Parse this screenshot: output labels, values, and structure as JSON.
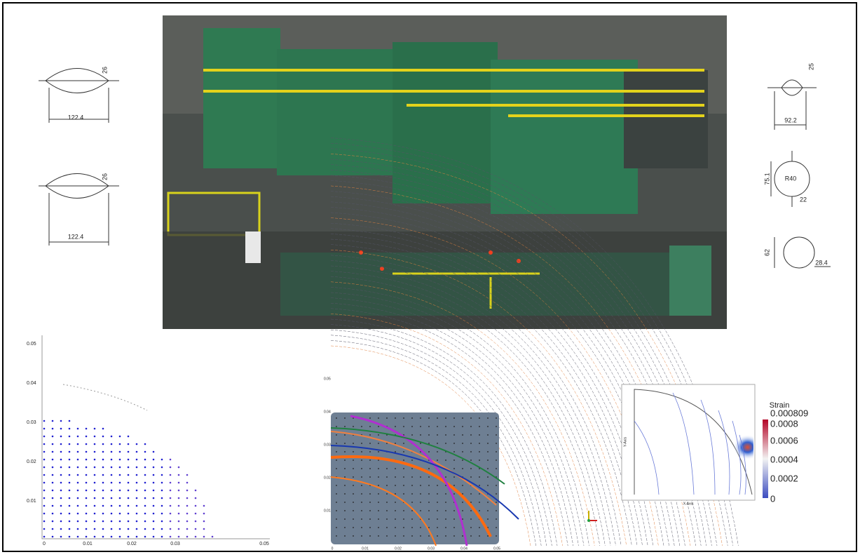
{
  "drawings": [
    {
      "labels": [
        "26",
        "122.4"
      ]
    },
    {
      "labels": [
        "26",
        "122.4"
      ]
    },
    {
      "labels": [
        "25",
        "92.2"
      ]
    },
    {
      "labels": [
        "R40",
        "75.1",
        "22"
      ]
    },
    {
      "labels": [
        "62",
        "28.4"
      ]
    }
  ],
  "left_plot": {
    "yticks": [
      "0.05",
      "0.04",
      "0.03",
      "0.02",
      "0.01"
    ],
    "xticks": [
      "0",
      "0.01",
      "0.02",
      "0.03",
      "0.05"
    ]
  },
  "middle_plot": {
    "yticks": [
      "0.05",
      "0.04",
      "0.03",
      "0.02",
      "0.01"
    ],
    "xticks": [
      "0",
      "0.01",
      "0.02",
      "0.03",
      "0.04",
      "0.05"
    ]
  },
  "fe_plot": {
    "x_label": "X-Axis",
    "y_label": "Y-Axis",
    "colorbar": {
      "title": "Strain",
      "labels": [
        "0.000809",
        "0.0008",
        "0.0006",
        "0.0004",
        "0.0002",
        "0"
      ]
    }
  }
}
